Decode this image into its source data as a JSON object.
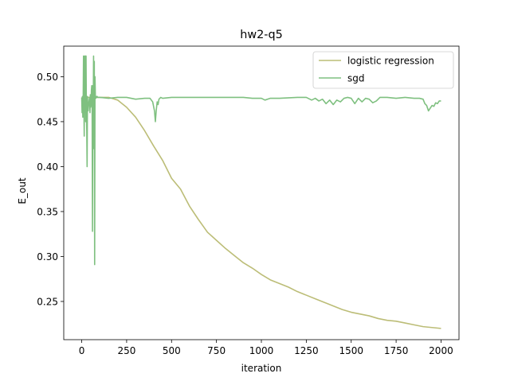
{
  "chart_data": {
    "type": "line",
    "title": "hw2-q5",
    "xlabel": "iteration",
    "ylabel": "E_out",
    "xlim": [
      -100,
      2100
    ],
    "ylim": [
      0.2075,
      0.534
    ],
    "xticks": [
      0,
      250,
      500,
      750,
      1000,
      1250,
      1500,
      1750,
      2000
    ],
    "xtick_labels": [
      "0",
      "250",
      "500",
      "750",
      "1000",
      "1250",
      "1500",
      "1750",
      "2000"
    ],
    "yticks": [
      0.25,
      0.3,
      0.35,
      0.4,
      0.45,
      0.5
    ],
    "ytick_labels": [
      "0.25",
      "0.30",
      "0.35",
      "0.40",
      "0.45",
      "0.50"
    ],
    "grid": false,
    "legend_position": "top-right",
    "series": [
      {
        "name": "logistic regression",
        "color": "#bcbd77",
        "x": [
          0,
          50,
          100,
          150,
          200,
          250,
          300,
          350,
          400,
          450,
          500,
          550,
          600,
          650,
          700,
          750,
          800,
          850,
          900,
          950,
          1000,
          1050,
          1100,
          1150,
          1200,
          1250,
          1300,
          1350,
          1400,
          1450,
          1500,
          1550,
          1600,
          1650,
          1700,
          1750,
          1800,
          1850,
          1900,
          1950,
          2000
        ],
        "values": [
          0.477,
          0.477,
          0.477,
          0.477,
          0.474,
          0.466,
          0.455,
          0.44,
          0.423,
          0.407,
          0.387,
          0.375,
          0.356,
          0.341,
          0.327,
          0.318,
          0.309,
          0.301,
          0.293,
          0.287,
          0.28,
          0.274,
          0.27,
          0.266,
          0.261,
          0.257,
          0.253,
          0.249,
          0.245,
          0.241,
          0.238,
          0.236,
          0.234,
          0.231,
          0.229,
          0.228,
          0.226,
          0.224,
          0.222,
          0.221,
          0.22
        ]
      },
      {
        "name": "sgd",
        "color": "#7fc080",
        "x": [
          0,
          2,
          4,
          6,
          8,
          10,
          12,
          14,
          16,
          18,
          20,
          22,
          24,
          26,
          28,
          30,
          32,
          34,
          36,
          38,
          40,
          42,
          44,
          46,
          48,
          50,
          52,
          54,
          56,
          58,
          60,
          62,
          64,
          66,
          68,
          70,
          72,
          74,
          76,
          78,
          80,
          82,
          84,
          86,
          88,
          90,
          100,
          150,
          200,
          250,
          300,
          350,
          380,
          395,
          405,
          410,
          415,
          420,
          425,
          430,
          440,
          450,
          500,
          600,
          700,
          800,
          900,
          950,
          1000,
          1020,
          1050,
          1100,
          1200,
          1250,
          1280,
          1300,
          1320,
          1340,
          1360,
          1380,
          1400,
          1420,
          1440,
          1460,
          1480,
          1500,
          1520,
          1540,
          1560,
          1580,
          1600,
          1620,
          1640,
          1660,
          1700,
          1750,
          1800,
          1850,
          1880,
          1900,
          1910,
          1920,
          1930,
          1940,
          1950,
          1960,
          1970,
          1980,
          1990,
          2000
        ],
        "values": [
          0.477,
          0.46,
          0.478,
          0.455,
          0.47,
          0.523,
          0.47,
          0.434,
          0.523,
          0.46,
          0.523,
          0.45,
          0.523,
          0.46,
          0.44,
          0.4,
          0.478,
          0.47,
          0.462,
          0.468,
          0.47,
          0.475,
          0.477,
          0.46,
          0.48,
          0.466,
          0.47,
          0.485,
          0.49,
          0.466,
          0.328,
          0.49,
          0.455,
          0.523,
          0.42,
          0.517,
          0.291,
          0.5,
          0.478,
          0.476,
          0.477,
          0.478,
          0.477,
          0.478,
          0.477,
          0.477,
          0.477,
          0.476,
          0.477,
          0.477,
          0.475,
          0.476,
          0.476,
          0.472,
          0.462,
          0.45,
          0.463,
          0.472,
          0.469,
          0.475,
          0.477,
          0.476,
          0.477,
          0.477,
          0.477,
          0.477,
          0.477,
          0.476,
          0.476,
          0.474,
          0.476,
          0.476,
          0.477,
          0.477,
          0.474,
          0.476,
          0.473,
          0.475,
          0.47,
          0.474,
          0.469,
          0.474,
          0.472,
          0.476,
          0.477,
          0.476,
          0.47,
          0.476,
          0.472,
          0.476,
          0.475,
          0.471,
          0.473,
          0.477,
          0.477,
          0.476,
          0.477,
          0.476,
          0.476,
          0.475,
          0.47,
          0.468,
          0.462,
          0.465,
          0.468,
          0.467,
          0.471,
          0.47,
          0.473,
          0.473
        ]
      }
    ]
  }
}
